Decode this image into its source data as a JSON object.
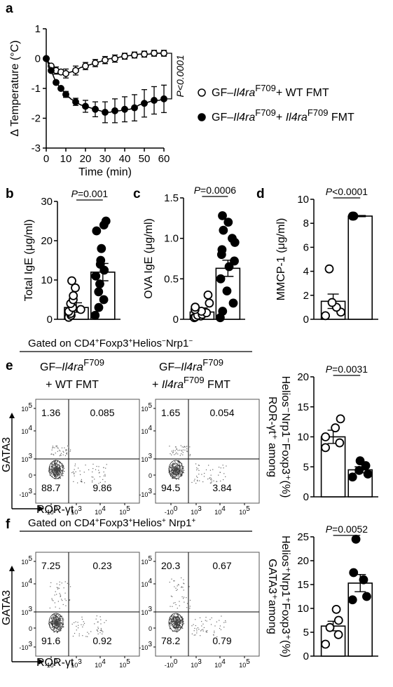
{
  "panel_labels": {
    "a": "a",
    "b": "b",
    "c": "c",
    "d": "d",
    "e": "e",
    "f": "f"
  },
  "chart_data": [
    {
      "id": "a",
      "type": "line",
      "xlabel": "Time (min)",
      "ylabel": "Δ Temperature (°C)",
      "xlim": [
        0,
        60
      ],
      "ylim": [
        -3,
        1
      ],
      "xticks": [
        "0",
        "10",
        "20",
        "30",
        "40",
        "50",
        "60"
      ],
      "yticks": [
        "1",
        "0",
        "-1",
        "-2",
        "-3"
      ],
      "x": [
        0,
        2.5,
        5,
        7.5,
        10,
        12.5,
        15,
        17.5,
        20,
        22.5,
        25,
        27.5,
        30,
        32.5,
        35,
        37.5,
        40,
        42.5,
        45,
        47.5,
        50,
        52.5,
        55,
        57.5,
        60
      ],
      "pvalue": "P<0.0001",
      "series": [
        {
          "name": "GF–Il4ra F709 + WT FMT",
          "legend_parts": [
            "GF–",
            "Il4ra",
            "F709",
            "+ WT FMT"
          ],
          "marker": "open",
          "values": [
            0,
            -0.25,
            -0.4,
            -0.45,
            -0.5,
            -0.45,
            -0.4,
            -0.3,
            -0.25,
            -0.2,
            -0.15,
            -0.1,
            -0.05,
            0,
            0,
            0.05,
            0.08,
            0.1,
            0.12,
            0.15,
            0.15,
            0.15,
            0.18,
            0.18,
            0.18
          ],
          "errors": [
            0,
            0.1,
            0.12,
            0.15,
            0.15,
            0.15,
            0.15,
            0.12,
            0.12,
            0.12,
            0.12,
            0.12,
            0.12,
            0.12,
            0.12,
            0.1,
            0.1,
            0.1,
            0.1,
            0.1,
            0.1,
            0.1,
            0.1,
            0.1,
            0.1
          ]
        },
        {
          "name": "GF–Il4ra F709 + Il4ra F709 FMT",
          "legend_parts": [
            "GF–",
            "Il4ra",
            "F709",
            "+ ",
            "Il4ra",
            "F709",
            " FMT"
          ],
          "marker": "filled",
          "values": [
            0,
            -0.4,
            -0.8,
            -1.0,
            -1.2,
            -1.35,
            -1.45,
            -1.55,
            -1.6,
            -1.65,
            -1.7,
            -1.75,
            -1.8,
            -1.8,
            -1.75,
            -1.75,
            -1.7,
            -1.7,
            -1.65,
            -1.55,
            -1.5,
            -1.45,
            -1.4,
            -1.4,
            -1.35
          ],
          "errors": [
            0,
            0.05,
            0.06,
            0.1,
            0.1,
            0.1,
            0.12,
            0.15,
            0.2,
            0.2,
            0.25,
            0.3,
            0.35,
            0.38,
            0.4,
            0.4,
            0.42,
            0.42,
            0.44,
            0.46,
            0.46,
            0.46,
            0.46,
            0.46,
            0.46
          ]
        }
      ]
    },
    {
      "id": "b",
      "type": "bar",
      "ylabel": "Total IgE (μg/ml)",
      "ylim": [
        0,
        30
      ],
      "yticks": [
        "0",
        "10",
        "20",
        "30"
      ],
      "pvalue": "P=0.001",
      "bars": [
        {
          "marker": "open",
          "mean": 3.0,
          "sem": 1.2,
          "points": [
            0.5,
            1,
            1.5,
            2,
            2.5,
            3,
            4,
            5,
            6,
            8,
            9.8
          ]
        },
        {
          "marker": "filled",
          "mean": 12.0,
          "sem": 2.2,
          "points": [
            1,
            3,
            5,
            7,
            9,
            11,
            12.5,
            14,
            15,
            18,
            22.5,
            24,
            25
          ]
        }
      ]
    },
    {
      "id": "c",
      "type": "bar",
      "ylabel": "OVA IgE (μg/ml)",
      "ylim": [
        0,
        1.5
      ],
      "yticks": [
        "0",
        "0.5",
        "1.0",
        "1.5"
      ],
      "pvalue": "P=0.0006",
      "bars": [
        {
          "marker": "open",
          "mean": 0.09,
          "sem": 0.05,
          "points": [
            0.02,
            0.03,
            0.04,
            0.05,
            0.06,
            0.08,
            0.1,
            0.12,
            0.15,
            0.2,
            0.3
          ]
        },
        {
          "marker": "filled",
          "mean": 0.63,
          "sem": 0.1,
          "points": [
            0.02,
            0.1,
            0.2,
            0.35,
            0.5,
            0.65,
            0.72,
            0.8,
            0.86,
            0.95,
            1.0,
            1.1,
            1.2,
            1.28
          ]
        }
      ]
    },
    {
      "id": "d",
      "type": "bar",
      "ylabel": "MMCP-1 (μg/ml)",
      "ylim": [
        0,
        10
      ],
      "yticks": [
        "0",
        "2",
        "4",
        "6",
        "8",
        "10"
      ],
      "pvalue": "P<0.0001",
      "bars": [
        {
          "marker": "open",
          "mean": 1.5,
          "sem": 0.6,
          "points": [
            0.3,
            0.6,
            1.0,
            1.4,
            4.2
          ]
        },
        {
          "marker": "filled",
          "mean": 8.6,
          "sem": 0.05,
          "points": [
            8.6,
            8.6
          ]
        }
      ]
    },
    {
      "id": "e_bar",
      "type": "bar",
      "ylabel": "ROR-γt⁺ among Helios⁻Nrp1⁻Foxp3⁺(%)",
      "ylabel_lines": [
        "ROR-γt⁺ among",
        "Helios⁻Nrp1⁻Foxp3⁺(%)"
      ],
      "ylim": [
        0,
        20
      ],
      "yticks": [
        "0",
        "5",
        "10",
        "15",
        "20"
      ],
      "pvalue": "P=0.0031",
      "bars": [
        {
          "marker": "open",
          "mean": 10.0,
          "sem": 1.1,
          "points": [
            8.2,
            9.0,
            10.0,
            11.5,
            13.0
          ]
        },
        {
          "marker": "filled",
          "mean": 4.5,
          "sem": 0.5,
          "points": [
            3.3,
            3.8,
            4.4,
            5.2,
            6.0
          ]
        }
      ]
    },
    {
      "id": "f_bar",
      "type": "bar",
      "ylabel": "GATA3⁺among Helios⁺Nrp1⁺Foxp3⁺(%)",
      "ylabel_lines": [
        "GATA3⁺among",
        "Helios⁺Nrp1⁺Foxp3⁺(%)"
      ],
      "ylim": [
        0,
        25
      ],
      "yticks": [
        "0",
        "5",
        "10",
        "15",
        "20",
        "25"
      ],
      "pvalue": "P=0.0052",
      "bars": [
        {
          "marker": "open",
          "mean": 6.3,
          "sem": 1.0,
          "points": [
            2.5,
            4.5,
            6.0,
            7.5,
            9.8
          ]
        },
        {
          "marker": "filled",
          "mean": 15.3,
          "sem": 1.8,
          "points": [
            11.8,
            12.5,
            16.0,
            17.5,
            24.5
          ]
        }
      ]
    }
  ],
  "flow": {
    "e_gate": "Gated on CD4⁺Foxp3⁺Helios⁻Nrp1⁻",
    "f_gate": "Gated on CD4⁺Foxp3⁺Helios⁺ Nrp1⁺",
    "col1_title": [
      "GF–Il4ra F709",
      "+ WT FMT"
    ],
    "col2_title": [
      "GF–Il4ra F709",
      "+ Il4ra F709 FMT"
    ],
    "y_axis_label": "GATA3",
    "x_axis_label": "ROR-γt",
    "y_ticks": [
      "10⁵",
      "10⁴",
      "10³",
      "0",
      "-10³"
    ],
    "x_ticks": [
      "-10⁰",
      "10³",
      "10⁴",
      "10⁵"
    ],
    "quadrants": {
      "e1": [
        "1.36",
        "0.085",
        "88.7",
        "9.86"
      ],
      "e2": [
        "1.65",
        "0.054",
        "94.5",
        "3.84"
      ],
      "f1": [
        "7.25",
        "0.23",
        "91.6",
        "0.92"
      ],
      "f2": [
        "20.3",
        "0.67",
        "78.2",
        "0.79"
      ]
    }
  }
}
